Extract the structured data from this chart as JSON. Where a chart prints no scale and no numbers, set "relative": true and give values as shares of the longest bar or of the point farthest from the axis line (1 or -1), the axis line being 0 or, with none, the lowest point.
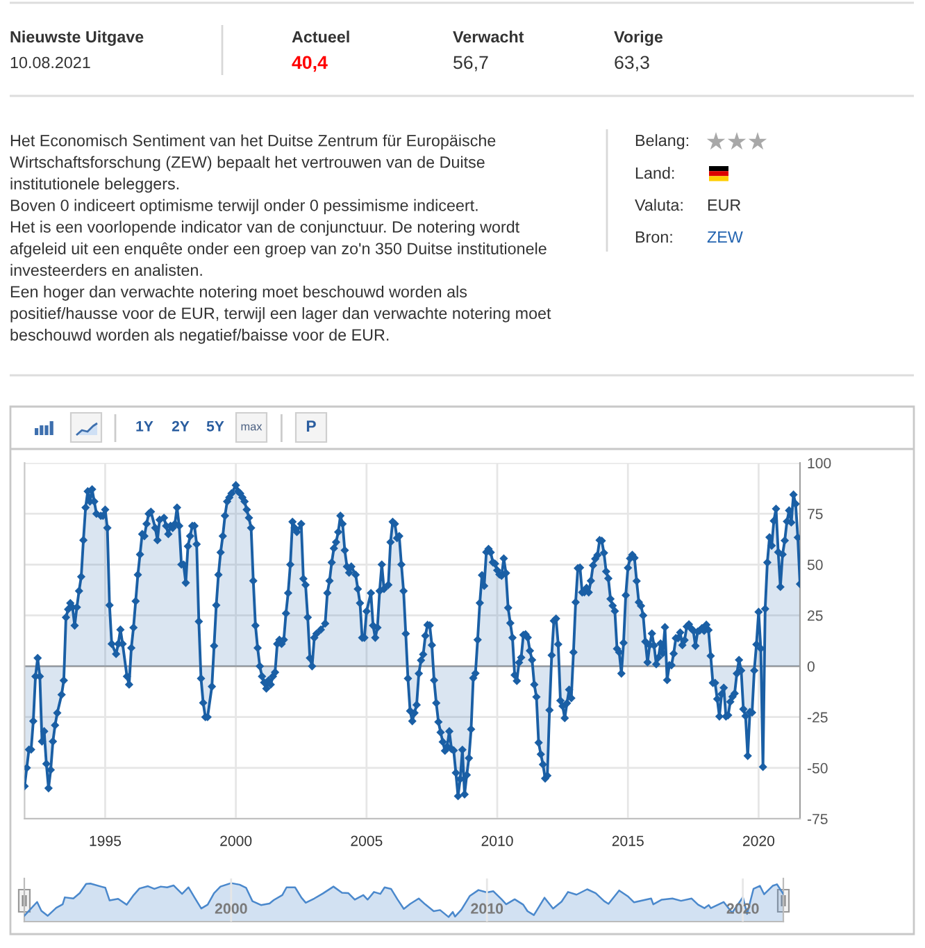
{
  "chart_data": [
    {
      "type": "other",
      "annotations": [
        "Nieuwste Uitgave",
        "10.08.2021",
        "Actueel",
        "40,4",
        "Verwacht",
        "56,7",
        "Vorige",
        "63,3",
        "Het Economisch Sentiment van het Duitse Zentrum für Europäische\nWirtschaftsforschung (ZEW) bepaalt het vertrouwen van de Duitse\ninstitutionele beleggers.\nBoven 0 indiceert optimisme terwijl onder 0 pessimisme indiceert.\nHet is een voorlopende indicator van de conjunctuur. De notering wordt\nafgeleid uit een enquête onder een groep van zo'n 350 Duitse institutionele\ninvesteerders en analisten.\nEen hoger dan verwachte notering moet beschouwd worden als\npositief/hausse voor de EUR, terwijl een lager dan verwachte notering moet\nbeschouwd worden als negatief/baisse voor de EUR.",
        "Belang:",
        "Land:",
        "Valuta:",
        "EUR",
        "Bron:",
        "ZEW"
      ]
    },
    {
      "type": "area",
      "annotations": [
        "1Y",
        "2Y",
        "5Y",
        "max",
        "P"
      ],
      "x": [
        "1991-12",
        "1992-01",
        "1992-02",
        "1992-03",
        "1992-04",
        "1992-05",
        "1992-06",
        "1992-07",
        "1992-08",
        "1992-09",
        "1992-10",
        "1992-11",
        "1992-12",
        "1993-01",
        "1993-02",
        "1993-03",
        "1993-05",
        "1993-06",
        "1993-07",
        "1993-08",
        "1993-09",
        "1993-10",
        "1993-11",
        "1993-12",
        "1994-01",
        "1994-02",
        "1994-03",
        "1994-04",
        "1994-05",
        "1994-06",
        "1994-07",
        "1994-08",
        "1994-09",
        "1994-11",
        "1994-12",
        "1995-01",
        "1995-02",
        "1995-03",
        "1995-04",
        "1995-06",
        "1995-07",
        "1995-08",
        "1995-09",
        "1995-11",
        "1995-12",
        "1996-01",
        "1996-02",
        "1996-03",
        "1996-04",
        "1996-05",
        "1996-06",
        "1996-07",
        "1996-08",
        "1996-09",
        "1996-10",
        "1996-12",
        "1997-01",
        "1997-02",
        "1997-04",
        "1997-05",
        "1997-06",
        "1997-07",
        "1997-08",
        "1997-09",
        "1997-10",
        "1997-11",
        "1997-12",
        "1998-01",
        "1998-02",
        "1998-03",
        "1998-04",
        "1998-05",
        "1998-06",
        "1998-07",
        "1998-08",
        "1998-09",
        "1998-10",
        "1998-11",
        "1998-12",
        "1999-02",
        "1999-03",
        "1999-04",
        "1999-05",
        "1999-06",
        "1999-07",
        "1999-08",
        "1999-09",
        "1999-10",
        "1999-11",
        "2000-01",
        "2000-02",
        "2000-03",
        "2000-04",
        "2000-05",
        "2000-06",
        "2000-07",
        "2000-08",
        "2000-09",
        "2000-10",
        "2000-11",
        "2000-12",
        "2001-01",
        "2001-02",
        "2001-03",
        "2001-04",
        "2001-05",
        "2001-06",
        "2001-07",
        "2001-08",
        "2001-09",
        "2001-10",
        "2001-11",
        "2001-12",
        "2002-01",
        "2002-02",
        "2002-03",
        "2002-04",
        "2002-05",
        "2002-07",
        "2002-08",
        "2002-09",
        "2002-10",
        "2002-11",
        "2002-12",
        "2003-01",
        "2003-02",
        "2003-04",
        "2003-06",
        "2003-07",
        "2003-08",
        "2003-09",
        "2003-10",
        "2003-11",
        "2003-12",
        "2004-01",
        "2004-02",
        "2004-03",
        "2004-04",
        "2004-05",
        "2004-06",
        "2004-08",
        "2004-09",
        "2004-10",
        "2004-11",
        "2004-12",
        "2005-01",
        "2005-03",
        "2005-04",
        "2005-05",
        "2005-06",
        "2005-07",
        "2005-08",
        "2005-09",
        "2005-11",
        "2005-12",
        "2006-01",
        "2006-02",
        "2006-03",
        "2006-04",
        "2006-05",
        "2006-06",
        "2006-07",
        "2006-08",
        "2006-09",
        "2006-10",
        "2006-11",
        "2006-12",
        "2007-01",
        "2007-02",
        "2007-03",
        "2007-04",
        "2007-05",
        "2007-06",
        "2007-07",
        "2007-08",
        "2007-09",
        "2007-10",
        "2007-11",
        "2007-12",
        "2008-01",
        "2008-02",
        "2008-03",
        "2008-04",
        "2008-05",
        "2008-06",
        "2008-07",
        "2008-08",
        "2008-09",
        "2008-10",
        "2008-11",
        "2008-12",
        "2009-01",
        "2009-02",
        "2009-03",
        "2009-04",
        "2009-05",
        "2009-06",
        "2009-07",
        "2009-08",
        "2009-09",
        "2009-10",
        "2009-11",
        "2009-12",
        "2010-01",
        "2010-02",
        "2010-03",
        "2010-04",
        "2010-05",
        "2010-06",
        "2010-07",
        "2010-08",
        "2010-09",
        "2010-10",
        "2010-11",
        "2010-12",
        "2011-01",
        "2011-02",
        "2011-03",
        "2011-04",
        "2011-05",
        "2011-06",
        "2011-07",
        "2011-08",
        "2011-09",
        "2011-10",
        "2011-11",
        "2011-12",
        "2012-01",
        "2012-02",
        "2012-03",
        "2012-04",
        "2012-05",
        "2012-06",
        "2012-07",
        "2012-08",
        "2012-09",
        "2012-10",
        "2012-11",
        "2012-12",
        "2013-01",
        "2013-02",
        "2013-03",
        "2013-04",
        "2013-05",
        "2013-06",
        "2013-07",
        "2013-08",
        "2013-09",
        "2013-10",
        "2013-11",
        "2013-12",
        "2014-01",
        "2014-02",
        "2014-03",
        "2014-04",
        "2014-05",
        "2014-06",
        "2014-07",
        "2014-08",
        "2014-09",
        "2014-10",
        "2014-11",
        "2014-12",
        "2015-01",
        "2015-02",
        "2015-03",
        "2015-04",
        "2015-05",
        "2015-06",
        "2015-07",
        "2015-08",
        "2015-09",
        "2015-10",
        "2015-11",
        "2015-12",
        "2016-01",
        "2016-02",
        "2016-03",
        "2016-04",
        "2016-05",
        "2016-06",
        "2016-07",
        "2016-08",
        "2016-09",
        "2016-10",
        "2016-11",
        "2016-12",
        "2017-01",
        "2017-02",
        "2017-03",
        "2017-04",
        "2017-05",
        "2017-06",
        "2017-07",
        "2017-08",
        "2017-09",
        "2017-10",
        "2017-11",
        "2017-12",
        "2018-01",
        "2018-02",
        "2018-03",
        "2018-04",
        "2018-05",
        "2018-06",
        "2018-07",
        "2018-08",
        "2018-09",
        "2018-10",
        "2018-11",
        "2018-12",
        "2019-01",
        "2019-02",
        "2019-03",
        "2019-04",
        "2019-05",
        "2019-06",
        "2019-07",
        "2019-08",
        "2019-09",
        "2019-10",
        "2019-11",
        "2019-12",
        "2020-01",
        "2020-02",
        "2020-03",
        "2020-04",
        "2020-05",
        "2020-06",
        "2020-07",
        "2020-08",
        "2020-09",
        "2020-10",
        "2020-11",
        "2020-12",
        "2021-01",
        "2021-02",
        "2021-03",
        "2021-04",
        "2021-05",
        "2021-06",
        "2021-07",
        "2021-08"
      ],
      "series": [
        {
          "color": "#1a5fa5",
          "values": [
            -59,
            -50,
            -41,
            -41,
            -27,
            -5,
            4,
            -5,
            -37,
            -32,
            -48,
            -60,
            -51,
            -37,
            -29,
            -23,
            -14,
            -7,
            24,
            28,
            31,
            29,
            20,
            29,
            37,
            44,
            62,
            78,
            86,
            81,
            87,
            81,
            75,
            74,
            74,
            77,
            68,
            30,
            11,
            6,
            11,
            18,
            11,
            -5,
            -9,
            9,
            19,
            32,
            45,
            55,
            65,
            64,
            70,
            75,
            76,
            68,
            62,
            72,
            73,
            69,
            65,
            69,
            68,
            70,
            78,
            69,
            50,
            50,
            41,
            59,
            64,
            69,
            69,
            60,
            22,
            -6,
            -18,
            -25,
            -25,
            -10,
            10,
            30,
            45,
            56,
            64,
            74,
            81,
            83,
            85,
            89,
            86,
            85,
            83,
            81,
            77,
            73,
            68,
            42,
            20,
            9,
            0,
            -5,
            -8,
            -11,
            -7,
            -9,
            -5,
            -3,
            11,
            13,
            11,
            13,
            26,
            36,
            50,
            71,
            68,
            66,
            70,
            43,
            40,
            24,
            4,
            0,
            14,
            16,
            18,
            21,
            36,
            42,
            51,
            58,
            61,
            66,
            74,
            70,
            57,
            49,
            46,
            49,
            45,
            38,
            31,
            14,
            14,
            27,
            36,
            20,
            14,
            19,
            37,
            50,
            38,
            40,
            61,
            71,
            70,
            63,
            64,
            50,
            37,
            16,
            -6,
            -22,
            -27,
            -23,
            -19,
            -3.6,
            2.9,
            5.8,
            15.0,
            20.3,
            20.1,
            10.4,
            -6.9,
            -18.1,
            -27.4,
            -32.5,
            -37.2,
            -41.6,
            -39.5,
            -32.0,
            -40.7,
            -41.4,
            -52.4,
            -63.9,
            -55.5,
            -41.1,
            -63.0,
            -53.5,
            -45.2,
            -31.0,
            -5.8,
            -3.5,
            13.0,
            31.1,
            44.8,
            39.5,
            56.1,
            57.7,
            56.0,
            51.1,
            50.4,
            47.2,
            45.1,
            44.5,
            53.0,
            45.8,
            28.7,
            21.2,
            14.0,
            -4.3,
            -7.2,
            1.8,
            4.3,
            15.4,
            15.7,
            14.1,
            7.6,
            3.1,
            -9.0,
            -15.1,
            -37.6,
            -43.3,
            -48.3,
            -55.2,
            -53.8,
            -21.6,
            5.4,
            22.3,
            23.4,
            10.8,
            -16.9,
            -19.6,
            -25.5,
            -18.2,
            -11.5,
            -15.7,
            6.9,
            31.5,
            48.2,
            48.5,
            36.3,
            36.4,
            38.5,
            36.3,
            42.0,
            49.6,
            52.8,
            54.6,
            62.0,
            61.7,
            55.7,
            46.6,
            43.2,
            33.1,
            29.8,
            27.1,
            8.6,
            6.9,
            -3.6,
            11.5,
            34.9,
            48.4,
            53.0,
            54.8,
            53.3,
            41.9,
            31.5,
            29.7,
            25.0,
            12.1,
            1.9,
            10.4,
            16.1,
            10.2,
            1.0,
            4.3,
            11.2,
            6.4,
            19.2,
            -6.8,
            0.5,
            0.5,
            6.2,
            13.8,
            13.8,
            16.6,
            10.4,
            12.8,
            19.5,
            20.6,
            18.6,
            17.5,
            10.0,
            17.0,
            17.6,
            18.7,
            17.4,
            20.4,
            17.8,
            5.1,
            -8.2,
            -8.2,
            -16.1,
            -24.7,
            -13.7,
            -10.6,
            -24.7,
            -24.1,
            -17.5,
            -15.0,
            -13.4,
            -3.6,
            3.1,
            -2.1,
            -21.1,
            -24.5,
            -44.1,
            -22.5,
            -22.8,
            -2.1,
            10.7,
            26.7,
            8.7,
            -49.5,
            28.2,
            51.0,
            63.4,
            59.3,
            71.5,
            77.4,
            56.1,
            39.0,
            55.0,
            61.8,
            71.2,
            76.6,
            70.7,
            84.4,
            79.8,
            63.3,
            40.4
          ]
        }
      ],
      "xlim": [
        "1991-12",
        "2021-08"
      ],
      "xticks": [
        "1995",
        "2000",
        "2005",
        "2010",
        "2015",
        "2020"
      ],
      "ylim": [
        -75,
        100
      ],
      "yticks": [
        -75,
        -50,
        -25,
        0,
        25,
        50,
        75,
        100
      ],
      "grid": true,
      "marker": "diamond",
      "ref_lines": [
        {
          "axis": "y",
          "value": 0,
          "color": "#a6a6a6"
        }
      ]
    },
    {
      "type": "area",
      "relative": true,
      "x": [
        "1991-12",
        "1992-06",
        "1992-08",
        "1992-11",
        "1993-03",
        "1993-06",
        "1993-07",
        "1993-11",
        "1994-02",
        "1994-05",
        "1994-07",
        "1994-12",
        "1995-02",
        "1995-04",
        "1995-08",
        "1995-12",
        "1996-03",
        "1996-06",
        "1996-10",
        "1997-01",
        "1997-04",
        "1997-07",
        "1997-10",
        "1998-02",
        "1998-05",
        "1998-08",
        "1998-11",
        "1999-02",
        "1999-05",
        "1999-08",
        "2000-01",
        "2000-05",
        "2000-08",
        "2000-11",
        "2001-03",
        "2001-07",
        "2001-09",
        "2002-01",
        "2002-03",
        "2002-07",
        "2002-10",
        "2002-12",
        "2003-04",
        "2003-08",
        "2004-01",
        "2004-05",
        "2004-08",
        "2004-11",
        "2005-03",
        "2005-05",
        "2005-08",
        "2005-11",
        "2006-01",
        "2006-04",
        "2006-07",
        "2006-10",
        "2007-01",
        "2007-05",
        "2007-08",
        "2007-12",
        "2008-03",
        "2008-07",
        "2008-09",
        "2008-10",
        "2009-01",
        "2009-05",
        "2009-09",
        "2010-01",
        "2010-04",
        "2010-08",
        "2010-10",
        "2011-02",
        "2011-06",
        "2011-08",
        "2011-11",
        "2012-04",
        "2012-08",
        "2012-12",
        "2013-03",
        "2013-07",
        "2013-12",
        "2014-04",
        "2014-08",
        "2014-10",
        "2015-03",
        "2015-07",
        "2015-10",
        "2016-06",
        "2016-07",
        "2016-11",
        "2017-04",
        "2017-08",
        "2018-01",
        "2018-04",
        "2018-07",
        "2018-09",
        "2018-10",
        "2019-04",
        "2019-08",
        "2019-12",
        "2020-01",
        "2020-03",
        "2020-06",
        "2020-09",
        "2020-11",
        "2021-03",
        "2021-05",
        "2021-08"
      ],
      "series": [
        {
          "color": "#4a88cc",
          "values": [
            0.15,
            0.51,
            0.28,
            0.15,
            0.36,
            0.45,
            0.63,
            0.6,
            0.74,
            0.98,
            0.99,
            0.91,
            0.88,
            0.55,
            0.59,
            0.44,
            0.67,
            0.86,
            0.92,
            0.85,
            0.91,
            0.89,
            0.94,
            0.72,
            0.89,
            0.61,
            0.34,
            0.44,
            0.74,
            0.91,
            1.0,
            0.96,
            0.88,
            0.53,
            0.43,
            0.47,
            0.56,
            0.69,
            0.89,
            0.89,
            0.62,
            0.49,
            0.6,
            0.73,
            0.91,
            0.75,
            0.74,
            0.57,
            0.69,
            0.57,
            0.77,
            0.72,
            0.89,
            0.85,
            0.58,
            0.33,
            0.46,
            0.6,
            0.45,
            0.27,
            0.3,
            0.12,
            0.25,
            0.13,
            0.31,
            0.67,
            0.82,
            0.76,
            0.79,
            0.57,
            0.45,
            0.58,
            0.44,
            0.27,
            0.17,
            0.62,
            0.34,
            0.52,
            0.77,
            0.7,
            0.84,
            0.74,
            0.53,
            0.46,
            0.81,
            0.66,
            0.5,
            0.6,
            0.45,
            0.57,
            0.6,
            0.54,
            0.6,
            0.44,
            0.35,
            0.43,
            0.35,
            0.51,
            0.23,
            0.55,
            0.64,
            0.2,
            0.85,
            0.93,
            0.71,
            0.93,
            0.97,
            0.72
          ]
        }
      ],
      "xlim": [
        "1991-12",
        "2021-08"
      ],
      "xticks": [
        "2000",
        "2010",
        "2020"
      ],
      "tick_labels": "x",
      "grid": "x"
    }
  ]
}
